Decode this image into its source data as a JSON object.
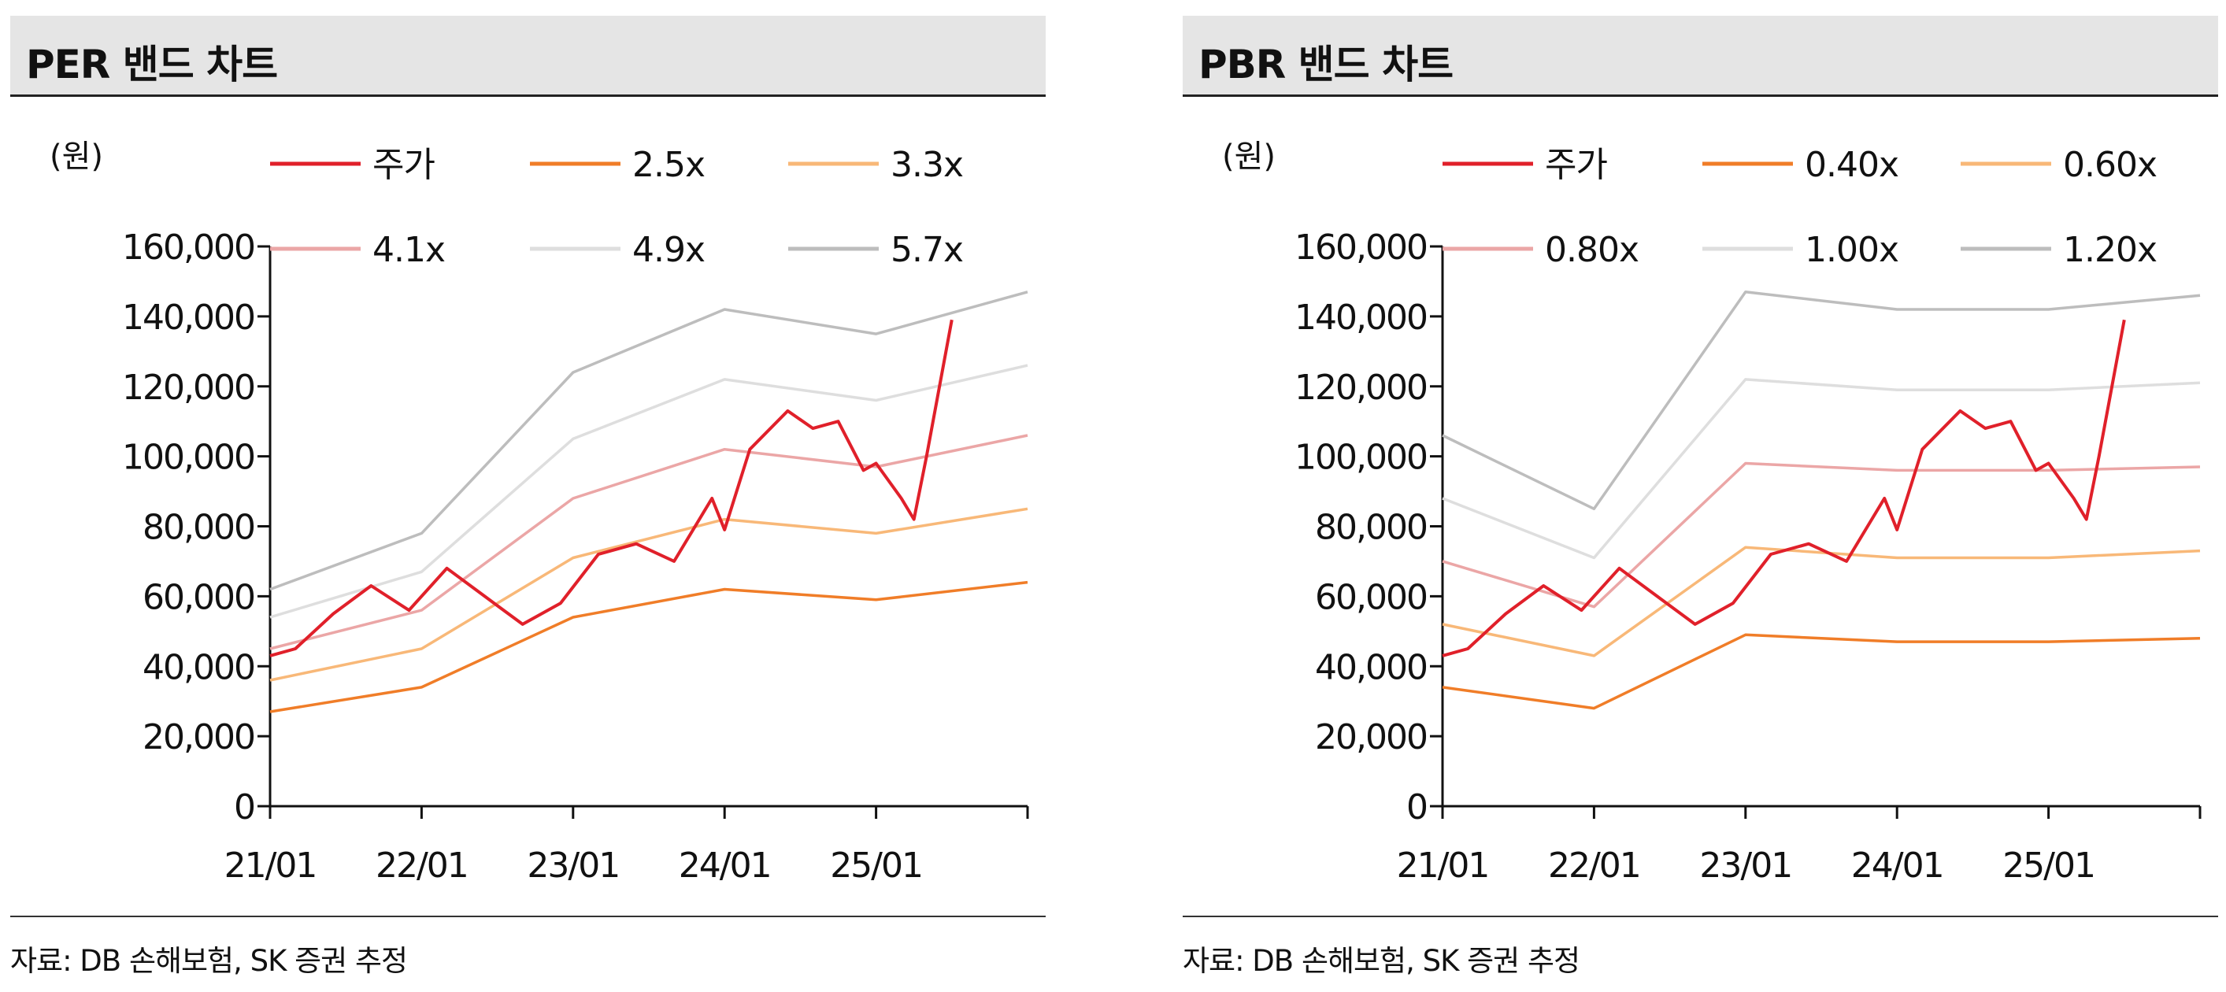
{
  "charts": [
    {
      "panel_title": "PER 밴드 차트",
      "source": "자료: DB 손해보험, SK 증권 추정"
    },
    {
      "panel_title": "PBR 밴드 차트",
      "source": "자료: DB 손해보험, SK 증권 추정"
    }
  ],
  "chart_data": [
    {
      "type": "line",
      "title": "PER 밴드 차트",
      "unit_label": "(원)",
      "ylim": [
        0,
        160000
      ],
      "y_ticks": [
        0,
        20000,
        40000,
        60000,
        80000,
        100000,
        120000,
        140000,
        160000
      ],
      "y_tick_labels": [
        "0",
        "20,000",
        "40,000",
        "60,000",
        "80,000",
        "100,000",
        "120,000",
        "140,000",
        "160,000"
      ],
      "x_range": [
        "2021-01",
        "2026-01"
      ],
      "x_ticks": [
        "2021-01",
        "2022-01",
        "2023-01",
        "2024-01",
        "2025-01",
        "2026-01"
      ],
      "x_tick_labels": [
        "21/01",
        "22/01",
        "23/01",
        "24/01",
        "25/01",
        ""
      ],
      "grid": false,
      "legend_position": "top",
      "series": [
        {
          "name": "주가",
          "color": "#e0202a",
          "x": [
            "2021-01",
            "2021-03",
            "2021-06",
            "2021-09",
            "2021-12",
            "2022-03",
            "2022-06",
            "2022-09",
            "2022-12",
            "2023-03",
            "2023-06",
            "2023-09",
            "2023-12",
            "2024-01",
            "2024-03",
            "2024-06",
            "2024-08",
            "2024-10",
            "2024-12",
            "2025-01",
            "2025-03",
            "2025-04",
            "2025-05",
            "2025-07"
          ],
          "values": [
            43000,
            45000,
            55000,
            63000,
            56000,
            68000,
            60000,
            52000,
            58000,
            72000,
            75000,
            70000,
            88000,
            79000,
            102000,
            113000,
            108000,
            110000,
            96000,
            98000,
            88000,
            82000,
            100000,
            139000
          ]
        },
        {
          "name": "2.5x",
          "color": "#f07d28",
          "x": [
            "2021-01",
            "2022-01",
            "2023-01",
            "2024-01",
            "2025-01",
            "2026-01"
          ],
          "values": [
            27000,
            34000,
            54000,
            62000,
            59000,
            64000
          ]
        },
        {
          "name": "3.3x",
          "color": "#f8b878",
          "x": [
            "2021-01",
            "2022-01",
            "2023-01",
            "2024-01",
            "2025-01",
            "2026-01"
          ],
          "values": [
            36000,
            45000,
            71000,
            82000,
            78000,
            85000
          ]
        },
        {
          "name": "4.1x",
          "color": "#eba6a6",
          "x": [
            "2021-01",
            "2022-01",
            "2023-01",
            "2024-01",
            "2025-01",
            "2026-01"
          ],
          "values": [
            45000,
            56000,
            88000,
            102000,
            97000,
            106000
          ]
        },
        {
          "name": "4.9x",
          "color": "#dedede",
          "x": [
            "2021-01",
            "2022-01",
            "2023-01",
            "2024-01",
            "2025-01",
            "2026-01"
          ],
          "values": [
            54000,
            67000,
            105000,
            122000,
            116000,
            126000
          ]
        },
        {
          "name": "5.7x",
          "color": "#bdbdbd",
          "x": [
            "2021-01",
            "2022-01",
            "2023-01",
            "2024-01",
            "2025-01",
            "2026-01"
          ],
          "values": [
            62000,
            78000,
            124000,
            142000,
            135000,
            147000
          ]
        }
      ]
    },
    {
      "type": "line",
      "title": "PBR 밴드 차트",
      "unit_label": "(원)",
      "ylim": [
        0,
        160000
      ],
      "y_ticks": [
        0,
        20000,
        40000,
        60000,
        80000,
        100000,
        120000,
        140000,
        160000
      ],
      "y_tick_labels": [
        "0",
        "20,000",
        "40,000",
        "60,000",
        "80,000",
        "100,000",
        "120,000",
        "140,000",
        "160,000"
      ],
      "x_range": [
        "2021-01",
        "2026-01"
      ],
      "x_ticks": [
        "2021-01",
        "2022-01",
        "2023-01",
        "2024-01",
        "2025-01",
        "2026-01"
      ],
      "x_tick_labels": [
        "21/01",
        "22/01",
        "23/01",
        "24/01",
        "25/01",
        ""
      ],
      "grid": false,
      "legend_position": "top",
      "series": [
        {
          "name": "주가",
          "color": "#e0202a",
          "x": [
            "2021-01",
            "2021-03",
            "2021-06",
            "2021-09",
            "2021-12",
            "2022-03",
            "2022-06",
            "2022-09",
            "2022-12",
            "2023-03",
            "2023-06",
            "2023-09",
            "2023-12",
            "2024-01",
            "2024-03",
            "2024-06",
            "2024-08",
            "2024-10",
            "2024-12",
            "2025-01",
            "2025-03",
            "2025-04",
            "2025-05",
            "2025-07"
          ],
          "values": [
            43000,
            45000,
            55000,
            63000,
            56000,
            68000,
            60000,
            52000,
            58000,
            72000,
            75000,
            70000,
            88000,
            79000,
            102000,
            113000,
            108000,
            110000,
            96000,
            98000,
            88000,
            82000,
            100000,
            139000
          ]
        },
        {
          "name": "0.40x",
          "color": "#f07d28",
          "x": [
            "2021-01",
            "2022-01",
            "2023-01",
            "2024-01",
            "2025-01",
            "2026-01"
          ],
          "values": [
            34000,
            28000,
            49000,
            47000,
            47000,
            48000
          ]
        },
        {
          "name": "0.60x",
          "color": "#f8b878",
          "x": [
            "2021-01",
            "2022-01",
            "2023-01",
            "2024-01",
            "2025-01",
            "2026-01"
          ],
          "values": [
            52000,
            43000,
            74000,
            71000,
            71000,
            73000
          ]
        },
        {
          "name": "0.80x",
          "color": "#eba6a6",
          "x": [
            "2021-01",
            "2022-01",
            "2023-01",
            "2024-01",
            "2025-01",
            "2026-01"
          ],
          "values": [
            70000,
            57000,
            98000,
            96000,
            96000,
            97000
          ]
        },
        {
          "name": "1.00x",
          "color": "#dedede",
          "x": [
            "2021-01",
            "2022-01",
            "2023-01",
            "2024-01",
            "2025-01",
            "2026-01"
          ],
          "values": [
            88000,
            71000,
            122000,
            119000,
            119000,
            121000
          ]
        },
        {
          "name": "1.20x",
          "color": "#bdbdbd",
          "x": [
            "2021-01",
            "2022-01",
            "2023-01",
            "2024-01",
            "2025-01",
            "2026-01"
          ],
          "values": [
            106000,
            85000,
            147000,
            142000,
            142000,
            146000
          ]
        }
      ]
    }
  ]
}
